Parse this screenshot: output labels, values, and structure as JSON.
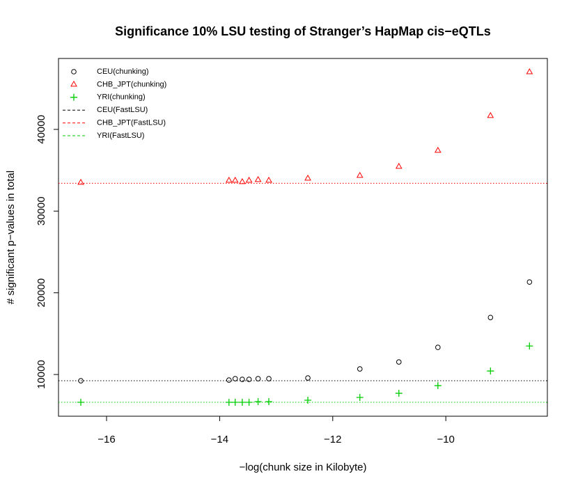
{
  "chart_data": {
    "type": "scatter",
    "title": "Significance 10% LSU testing of Stranger’s HapMap cis−eQTLs",
    "xlabel": "−log(chunk size in Kilobyte)",
    "ylabel": "# significant p−values in total",
    "x": [
      -16.455,
      -13.835,
      -13.725,
      -13.6,
      -13.48,
      -13.32,
      -13.13,
      -12.44,
      -11.52,
      -10.83,
      -10.14,
      -9.21,
      -8.52
    ],
    "series": [
      {
        "name": "CEU(chunking)",
        "color": "#000000",
        "marker": "circle",
        "values": [
          9234,
          9319,
          9489,
          9404,
          9404,
          9489,
          9489,
          9574,
          10680,
          11532,
          13319,
          16979,
          21319
        ]
      },
      {
        "name": "CHB_JPT(chunking)",
        "color": "#ff0000",
        "marker": "triangle",
        "values": [
          33489,
          33745,
          33745,
          33574,
          33745,
          33830,
          33745,
          34000,
          34340,
          35447,
          37404,
          41660,
          47021
        ]
      },
      {
        "name": "YRI(chunking)",
        "color": "#00cd00",
        "marker": "plus",
        "values": [
          6596,
          6596,
          6596,
          6596,
          6596,
          6681,
          6681,
          6851,
          7191,
          7702,
          8638,
          10426,
          13489
        ]
      }
    ],
    "lines": [
      {
        "name": "CEU(FastLSU)",
        "color": "#000000",
        "value": 9234
      },
      {
        "name": "CHB_JPT(FastLSU)",
        "color": "#ff0000",
        "value": 33404
      },
      {
        "name": "YRI(FastLSU)",
        "color": "#00cd00",
        "value": 6596
      }
    ],
    "xlim": [
      -16.85,
      -8.204
    ],
    "ylim": [
      4894,
      48681
    ],
    "xticks": [
      {
        "value": -16,
        "label": "−16"
      },
      {
        "value": -14,
        "label": "−14"
      },
      {
        "value": -12,
        "label": "−12"
      },
      {
        "value": -10,
        "label": "−10"
      }
    ],
    "yticks": [
      10000,
      20000,
      30000,
      40000
    ],
    "legend": "top-left"
  }
}
